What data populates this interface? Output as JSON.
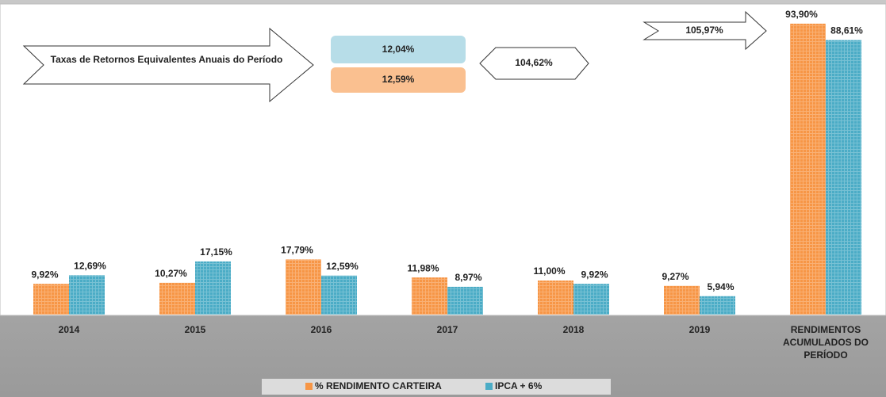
{
  "chart_data": {
    "type": "bar",
    "categories": [
      "2014",
      "2015",
      "2016",
      "2017",
      "2018",
      "2019",
      "RENDIMENTOS ACUMULADOS DO PERÍODO"
    ],
    "series": [
      {
        "name": "% RENDIMENTO CARTEIRA",
        "color": "#f79646",
        "values": [
          9.92,
          10.27,
          17.79,
          11.98,
          11.0,
          9.27,
          93.9
        ],
        "value_labels": [
          "9,92%",
          "10,27%",
          "17,79%",
          "11,98%",
          "11,00%",
          "9,27%",
          "93,90%"
        ]
      },
      {
        "name": "IPCA + 6%",
        "color": "#4bacc6",
        "values": [
          12.69,
          17.15,
          12.59,
          8.97,
          9.92,
          5.94,
          88.61
        ],
        "value_labels": [
          "12,69%",
          "17,15%",
          "12,59%",
          "8,97%",
          "9,92%",
          "5,94%",
          "88,61%"
        ]
      }
    ],
    "ylim": [
      0,
      100
    ],
    "annotations": [
      "Taxas de Retornos Equivalentes Anuais do Período",
      "12,04%",
      "12,59%",
      "104,62%",
      "105,97%"
    ]
  }
}
